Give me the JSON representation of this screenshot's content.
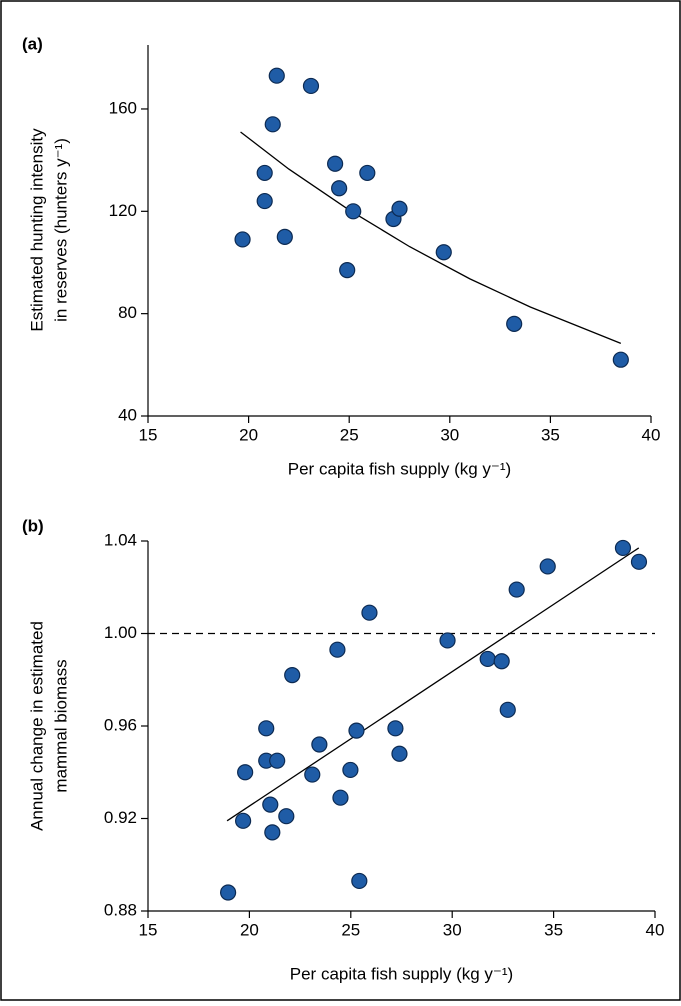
{
  "chart_data": [
    {
      "type": "scatter",
      "panel_label": "(a)",
      "xlabel": "Per capita fish supply (kg y⁻¹)",
      "ylabel": [
        "Estimated hunting intensity",
        "in reserves (hunters y⁻¹)"
      ],
      "x": [
        19.7,
        20.8,
        20.8,
        21.2,
        21.4,
        21.8,
        23.1,
        24.3,
        24.5,
        24.9,
        25.2,
        25.9,
        27.2,
        27.5,
        29.7,
        33.2,
        38.5
      ],
      "values": [
        109,
        135,
        124,
        154,
        173,
        110,
        169,
        138.6,
        129,
        97,
        120,
        135,
        117,
        121,
        104,
        76,
        62
      ],
      "color": "#1f5ca6",
      "fit": {
        "x": [
          19.6,
          22,
          25,
          28,
          31,
          34,
          38.5
        ],
        "values": [
          151,
          136.5,
          120.5,
          106.2,
          93.6,
          82.6,
          68.4
        ]
      },
      "xlim": [
        15,
        40
      ],
      "ylim": [
        40,
        185
      ],
      "xticks": [
        15,
        20,
        25,
        30,
        35,
        40
      ],
      "yticks": [
        40,
        80,
        120,
        160
      ]
    },
    {
      "type": "scatter",
      "panel_label": "(b)",
      "xlabel": "Per capita fish supply (kg y⁻¹)",
      "ylabel": [
        "Annual change in estimated",
        "mammal biomass"
      ],
      "x": [
        18.95,
        19.69,
        19.79,
        20.83,
        20.83,
        21.03,
        21.13,
        21.37,
        21.82,
        22.11,
        23.1,
        23.45,
        24.34,
        24.49,
        24.98,
        25.28,
        25.42,
        25.92,
        27.2,
        27.4,
        29.77,
        31.75,
        32.44,
        32.74,
        33.18,
        34.71,
        38.42,
        39.21
      ],
      "values": [
        0.888,
        0.919,
        0.94,
        0.959,
        0.945,
        0.926,
        0.914,
        0.945,
        0.921,
        0.982,
        0.939,
        0.952,
        0.993,
        0.929,
        0.941,
        0.958,
        0.893,
        1.009,
        0.959,
        0.948,
        0.997,
        0.989,
        0.988,
        0.967,
        1.019,
        1.029,
        1.037,
        1.031
      ],
      "color": "#1f5ca6",
      "fit": {
        "x": [
          18.9,
          39.2
        ],
        "values": [
          0.919,
          1.037
        ]
      },
      "hline": 1,
      "xlim": [
        15,
        40
      ],
      "ylim": [
        0.88,
        1.04
      ],
      "xticks": [
        15,
        20,
        25,
        30,
        35,
        40
      ],
      "yticks": [
        0.88,
        0.92,
        0.96,
        {
          "value": 1,
          "label": "1.00"
        },
        1.04
      ]
    }
  ]
}
